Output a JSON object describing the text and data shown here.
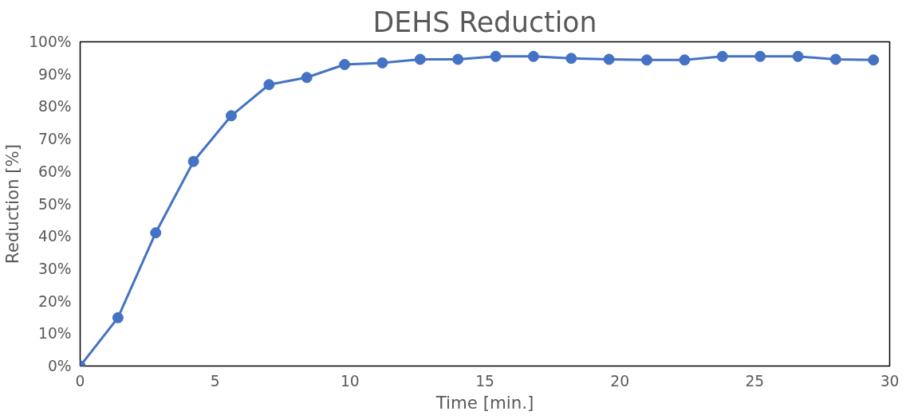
{
  "chart_data": {
    "type": "line",
    "title": "DEHS Reduction",
    "xlabel": "Time [min.]",
    "ylabel": "Reduction [%]",
    "x": [
      0,
      1.4,
      2.8,
      4.2,
      5.6,
      7.0,
      8.4,
      9.8,
      11.2,
      12.6,
      14.0,
      15.4,
      16.8,
      18.2,
      19.6,
      21.0,
      22.4,
      23.8,
      25.2,
      26.6,
      28.0,
      29.4
    ],
    "series": [
      {
        "color": "#4472c4",
        "values": [
          0,
          14.9,
          41.1,
          63.1,
          77.2,
          86.8,
          89.0,
          93.0,
          93.5,
          94.6,
          94.6,
          95.5,
          95.5,
          94.9,
          94.6,
          94.4,
          94.4,
          95.5,
          95.5,
          95.5,
          94.6,
          94.4
        ]
      }
    ],
    "xlim": [
      0,
      30
    ],
    "xticks": [
      0,
      5,
      10,
      15,
      20,
      25,
      30
    ],
    "ylim": [
      0,
      100
    ],
    "yticks": [
      {
        "value": 0,
        "label": "0%"
      },
      {
        "value": 10,
        "label": "10%"
      },
      {
        "value": 20,
        "label": "20%"
      },
      {
        "value": 30,
        "label": "30%"
      },
      {
        "value": 40,
        "label": "40%"
      },
      {
        "value": 50,
        "label": "50%"
      },
      {
        "value": 60,
        "label": "60%"
      },
      {
        "value": 70,
        "label": "70%"
      },
      {
        "value": 80,
        "label": "80%"
      },
      {
        "value": 90,
        "label": "90%"
      },
      {
        "value": 100,
        "label": "100%"
      }
    ],
    "grid": false,
    "marker": "circle",
    "line_style": "solid"
  }
}
